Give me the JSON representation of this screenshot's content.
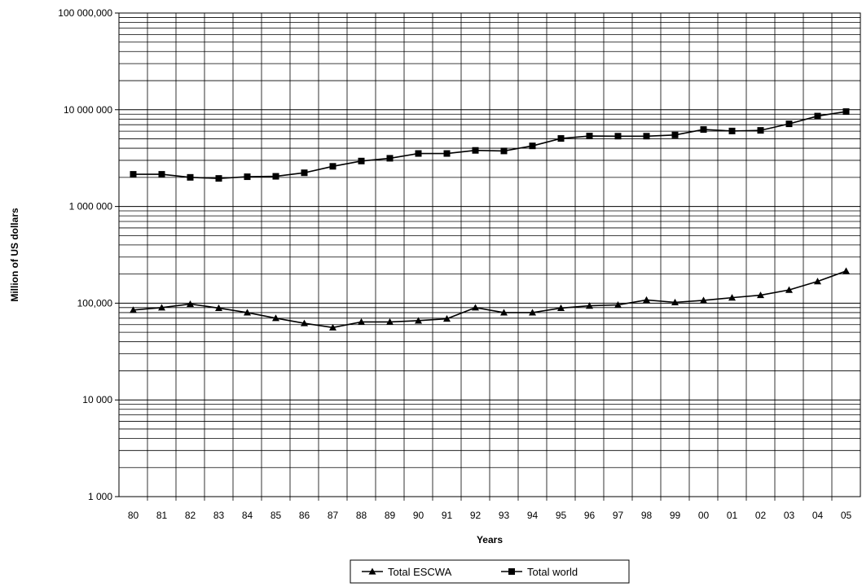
{
  "chart_data": {
    "type": "line",
    "xlabel": "Years",
    "ylabel": "Million of US dollars",
    "yscale": "log",
    "ylim": [
      1000,
      100000000
    ],
    "grid": true,
    "legend_position": "bottom-center",
    "categories": [
      "80",
      "81",
      "82",
      "83",
      "84",
      "85",
      "86",
      "87",
      "88",
      "89",
      "90",
      "91",
      "92",
      "93",
      "94",
      "95",
      "96",
      "97",
      "98",
      "99",
      "00",
      "01",
      "02",
      "03",
      "04",
      "05"
    ],
    "y_ticks": [
      {
        "value": 1000,
        "label": "1 000"
      },
      {
        "value": 10000,
        "label": "10 000"
      },
      {
        "value": 100000,
        "label": "100,000"
      },
      {
        "value": 1000000,
        "label": "1 000 000"
      },
      {
        "value": 10000000,
        "label": "10 000 000"
      },
      {
        "value": 100000000,
        "label": "100 000,000"
      }
    ],
    "series": [
      {
        "name": "Total ESCWA",
        "marker": "triangle",
        "values": [
          85000,
          90000,
          98000,
          89000,
          80000,
          70000,
          62000,
          56000,
          64000,
          64000,
          66000,
          69000,
          90000,
          80000,
          80000,
          89000,
          94000,
          96000,
          108000,
          102000,
          107000,
          114000,
          121000,
          137000,
          168000,
          215000
        ]
      },
      {
        "name": "Total world",
        "marker": "square",
        "values": [
          2150000,
          2150000,
          2000000,
          1950000,
          2030000,
          2050000,
          2230000,
          2600000,
          2950000,
          3150000,
          3530000,
          3530000,
          3800000,
          3750000,
          4230000,
          5050000,
          5350000,
          5330000,
          5330000,
          5480000,
          6250000,
          6030000,
          6120000,
          7150000,
          8600000,
          9570000
        ]
      }
    ]
  }
}
